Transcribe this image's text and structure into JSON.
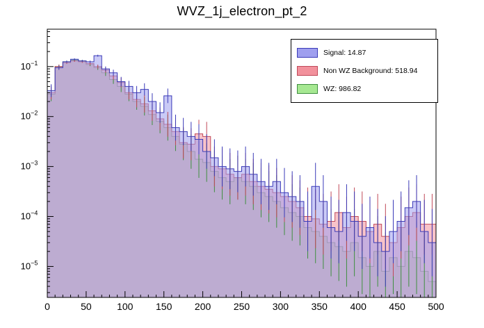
{
  "chart_data": {
    "type": "histogram",
    "title": "WVZ_1j_electron_pt_2",
    "x_min": 0,
    "x_max": 500,
    "bin_width": 10,
    "n_bins": 50,
    "y_scale": "log",
    "y_range": [
      2.4e-06,
      0.56
    ],
    "x_ticks": [
      0,
      50,
      100,
      150,
      200,
      250,
      300,
      350,
      400,
      450,
      500
    ],
    "y_tick_exponents": [
      -1,
      -2,
      -3,
      -4,
      -5
    ],
    "grid": false,
    "legend_position": "top-right",
    "series": [
      {
        "name": "Signal",
        "legend_label": "Signal: 14.87",
        "yield": 14.87,
        "fill": "#9f9fef",
        "stroke": "#3a3ab8",
        "values": [
          0.033,
          0.095,
          0.125,
          0.14,
          0.13,
          0.125,
          0.165,
          0.09,
          0.075,
          0.05,
          0.04,
          0.03,
          0.035,
          0.02,
          0.012,
          0.026,
          0.006,
          0.005,
          0.004,
          0.0035,
          0.002,
          0.0015,
          0.001,
          0.0009,
          0.0008,
          0.001,
          0.0007,
          0.0005,
          0.0004,
          0.0005,
          0.0003,
          0.00025,
          0.0002,
          8e-05,
          0.0004,
          0.0002,
          6e-05,
          5e-05,
          0.00012,
          8e-05,
          4e-05,
          6e-05,
          3e-05,
          2e-05,
          5e-05,
          8e-05,
          0.00015,
          0.0002,
          5e-05,
          3e-05
        ]
      },
      {
        "name": "Non WZ Background",
        "legend_label": "Non WZ Background: 518.94",
        "yield": 518.94,
        "fill": "#f2919c",
        "stroke": "#c04858",
        "values": [
          0.03,
          0.1,
          0.12,
          0.13,
          0.125,
          0.115,
          0.1,
          0.085,
          0.065,
          0.048,
          0.03,
          0.022,
          0.018,
          0.013,
          0.009,
          0.007,
          0.005,
          0.003,
          0.0028,
          0.0045,
          0.004,
          0.001,
          0.0009,
          0.0007,
          0.0006,
          0.0007,
          0.0005,
          0.0004,
          0.00035,
          0.0003,
          0.00025,
          0.0002,
          0.00015,
          0.0001,
          9e-05,
          7e-05,
          8e-05,
          0.00012,
          6e-05,
          0.0001,
          8e-05,
          5e-05,
          7e-05,
          4e-05,
          3e-05,
          6e-05,
          0.0001,
          0.00012,
          7e-05,
          7e-05
        ]
      },
      {
        "name": "WZ",
        "legend_label": "WZ: 986.82",
        "yield": 986.82,
        "fill": "#a6e892",
        "stroke": "#3f8f3f",
        "values": [
          0.028,
          0.1,
          0.125,
          0.135,
          0.13,
          0.11,
          0.095,
          0.075,
          0.055,
          0.04,
          0.028,
          0.02,
          0.016,
          0.011,
          0.008,
          0.006,
          0.004,
          0.0028,
          0.002,
          0.0014,
          0.0012,
          0.0008,
          0.0006,
          0.0005,
          0.0006,
          0.0005,
          0.0004,
          0.0003,
          0.00025,
          0.0002,
          0.00015,
          0.00012,
          0.0001,
          6e-05,
          5e-05,
          4e-05,
          3e-05,
          2.5e-05,
          2e-05,
          3e-05,
          1.5e-05,
          1e-05,
          2e-05,
          8e-06,
          1.5e-05,
          1e-05,
          2e-05,
          1.5e-05,
          8e-06,
          5e-06
        ]
      }
    ]
  }
}
